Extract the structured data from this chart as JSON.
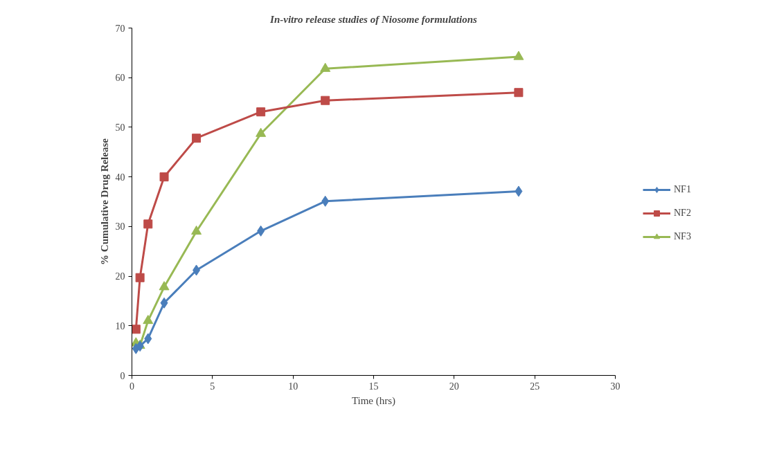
{
  "chart_data": {
    "type": "line",
    "title": "In-vitro release studies of Niosome formulations",
    "xlabel": "Time (hrs)",
    "ylabel": "% Cumulative Drug Release",
    "x": [
      0.25,
      0.5,
      1,
      2,
      4,
      8,
      12,
      24
    ],
    "series": [
      {
        "name": "NF1",
        "color": "#4a7ebb",
        "marker": "diamond",
        "values": [
          5.4,
          5.9,
          7.4,
          14.6,
          21.2,
          29.1,
          35.1,
          37.1
        ]
      },
      {
        "name": "NF2",
        "color": "#be4b48",
        "marker": "square",
        "values": [
          9.3,
          19.7,
          30.5,
          40,
          47.8,
          53.1,
          55.4,
          57
        ]
      },
      {
        "name": "NF3",
        "color": "#98b954",
        "marker": "triangle",
        "values": [
          6.5,
          6,
          11,
          17.8,
          29,
          48.7,
          61.8,
          64.2
        ]
      }
    ],
    "xlim": [
      0,
      30
    ],
    "xticks": [
      0,
      5,
      10,
      15,
      20,
      25,
      30
    ],
    "ylim": [
      0,
      70
    ],
    "yticks": [
      0,
      10,
      20,
      30,
      40,
      50,
      60,
      70
    ],
    "grid": false,
    "legend": "right",
    "line_style": "solid"
  }
}
